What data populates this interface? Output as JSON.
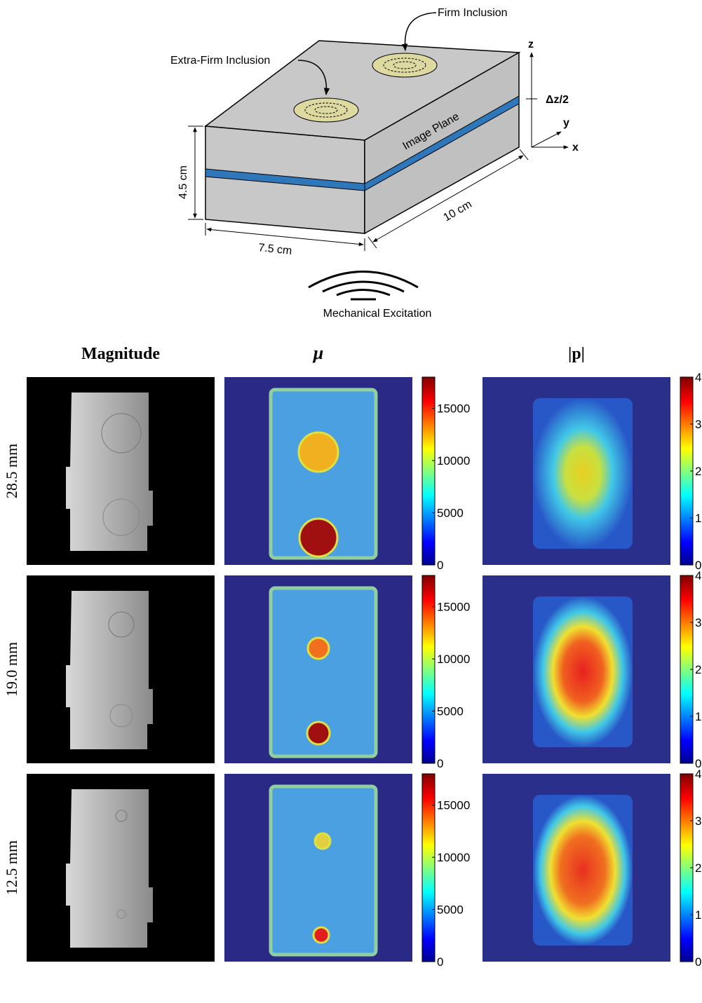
{
  "diagram": {
    "firm_label": "Firm Inclusion",
    "extra_firm_label": "Extra-Firm Inclusion",
    "z_axis": "z",
    "dz_label": "Δz/2",
    "y_axis": "y",
    "x_axis": "x",
    "image_plane": "Image Plane",
    "height": "4.5 cm",
    "length": "10 cm",
    "width": "7.5 cm",
    "excitation": "Mechanical Excitation"
  },
  "columns": [
    "Magnitude",
    "μ",
    "|p|"
  ],
  "rows": [
    "28.5 mm",
    "19.0 mm",
    "12.5 mm"
  ],
  "colorbars": {
    "mu": {
      "lim": [
        0,
        18000
      ],
      "ticks": [
        0,
        5000,
        10000,
        15000
      ]
    },
    "p": {
      "lim": [
        0,
        4
      ],
      "ticks": [
        0,
        1,
        2,
        3,
        4
      ]
    }
  }
}
